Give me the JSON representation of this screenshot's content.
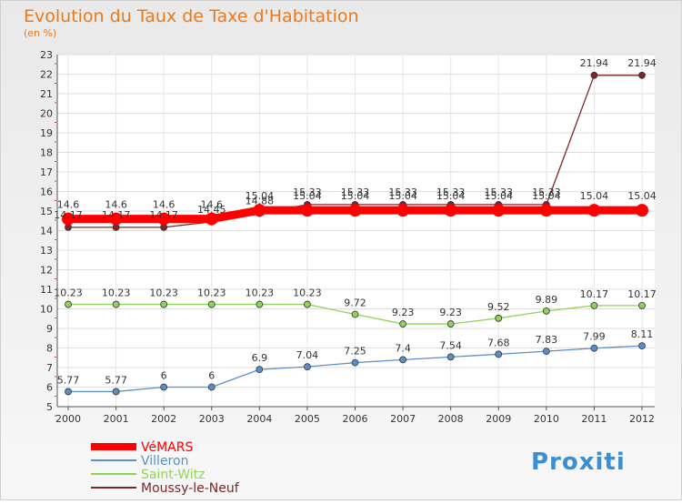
{
  "chart_data": {
    "type": "line",
    "title": "Evolution du Taux de Taxe d'Habitation",
    "subtitle": "(en %)",
    "x": [
      "2000",
      "2001",
      "2002",
      "2003",
      "2004",
      "2005",
      "2006",
      "2007",
      "2008",
      "2009",
      "2010",
      "2011",
      "2012"
    ],
    "ylim": [
      5,
      23
    ],
    "yticks": [
      5,
      6,
      7,
      8,
      9,
      10,
      11,
      12,
      13,
      14,
      15,
      16,
      17,
      18,
      19,
      20,
      21,
      22,
      23
    ],
    "grid": true,
    "legend_position": "bottom-left",
    "series": [
      {
        "name": "VéMARS",
        "color": "#ff0000",
        "values": [
          14.6,
          14.6,
          14.6,
          14.6,
          15.04,
          15.04,
          15.04,
          15.04,
          15.04,
          15.04,
          15.04,
          15.04,
          15.04
        ],
        "labels": [
          "14.6",
          "14.6",
          "14.6",
          "14.6",
          "15.04",
          "15.04",
          "15.04",
          "15.04",
          "15.04",
          "15.04",
          "15.04",
          "15.04",
          "15.04"
        ]
      },
      {
        "name": "Villeron",
        "color": "#5b8fc5",
        "values": [
          5.77,
          5.77,
          6,
          6,
          6.9,
          7.04,
          7.25,
          7.4,
          7.54,
          7.68,
          7.83,
          7.99,
          8.11
        ],
        "labels": [
          "5.77",
          "5.77",
          "6",
          "6",
          "6.9",
          "7.04",
          "7.25",
          "7.4",
          "7.54",
          "7.68",
          "7.83",
          "7.99",
          "8.11"
        ]
      },
      {
        "name": "Saint-Witz",
        "color": "#90d35a",
        "values": [
          10.23,
          10.23,
          10.23,
          10.23,
          10.23,
          10.23,
          9.72,
          9.23,
          9.23,
          9.52,
          9.89,
          10.17,
          10.17
        ],
        "labels": [
          "10.23",
          "10.23",
          "10.23",
          "10.23",
          "10.23",
          "10.23",
          "9.72",
          "9.23",
          "9.23",
          "9.52",
          "9.89",
          "10.17",
          "10.17"
        ]
      },
      {
        "name": "Moussy-le-Neuf",
        "color": "#7a2828",
        "values": [
          14.17,
          14.17,
          14.17,
          14.45,
          14.88,
          15.33,
          15.33,
          15.33,
          15.33,
          15.33,
          15.33,
          21.94,
          21.94
        ],
        "labels": [
          "14.17",
          "14.17",
          "14.17",
          "14.45",
          "14.88",
          "15.33",
          "15.33",
          "15.33",
          "15.33",
          "15.33",
          "15.33",
          "21.94",
          "21.94"
        ]
      }
    ]
  },
  "logo": {
    "text": "Proxiti"
  }
}
